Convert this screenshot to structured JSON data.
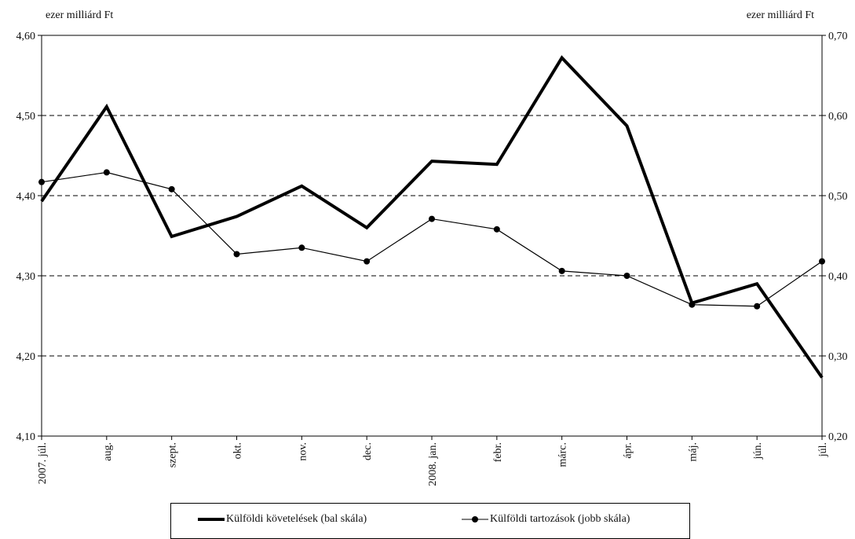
{
  "left_unit": "ezer milliárd Ft",
  "right_unit": "ezer milliárd Ft",
  "legend": {
    "series1": "Külföldi követelések (bal skála)",
    "series2": "Külföldi tartozások (jobb skála)"
  },
  "chart_data": {
    "type": "line",
    "categories": [
      "2007. júl.",
      "aug.",
      "szept.",
      "okt.",
      "nov.",
      "dec.",
      "2008. jan.",
      "febr.",
      "márc.",
      "ápr.",
      "máj.",
      "jún.",
      "júl."
    ],
    "y_left": {
      "min": 4.1,
      "max": 4.6,
      "ticks": [
        "4,10",
        "4,20",
        "4,30",
        "4,40",
        "4,50",
        "4,60"
      ],
      "tick_values": [
        4.1,
        4.2,
        4.3,
        4.4,
        4.5,
        4.6
      ]
    },
    "y_right": {
      "min": 0.2,
      "max": 0.7,
      "ticks": [
        "0,20",
        "0,30",
        "0,40",
        "0,50",
        "0,60",
        "0,70"
      ],
      "tick_values": [
        0.2,
        0.3,
        0.4,
        0.5,
        0.6,
        0.7
      ]
    },
    "grid": "dashed horizontal",
    "legend_position": "bottom",
    "series": [
      {
        "name": "Külföldi követelések (bal skála)",
        "axis": "left",
        "style": "thick",
        "values": [
          4.393,
          4.511,
          4.349,
          4.374,
          4.412,
          4.36,
          4.443,
          4.439,
          4.572,
          4.487,
          4.266,
          4.29,
          4.173
        ]
      },
      {
        "name": "Külföldi tartozások (jobb skála)",
        "axis": "right",
        "style": "thin-markers",
        "values": [
          0.517,
          0.529,
          0.508,
          0.427,
          0.435,
          0.418,
          0.471,
          0.458,
          0.406,
          0.4,
          0.364,
          0.362,
          0.418
        ]
      }
    ]
  }
}
